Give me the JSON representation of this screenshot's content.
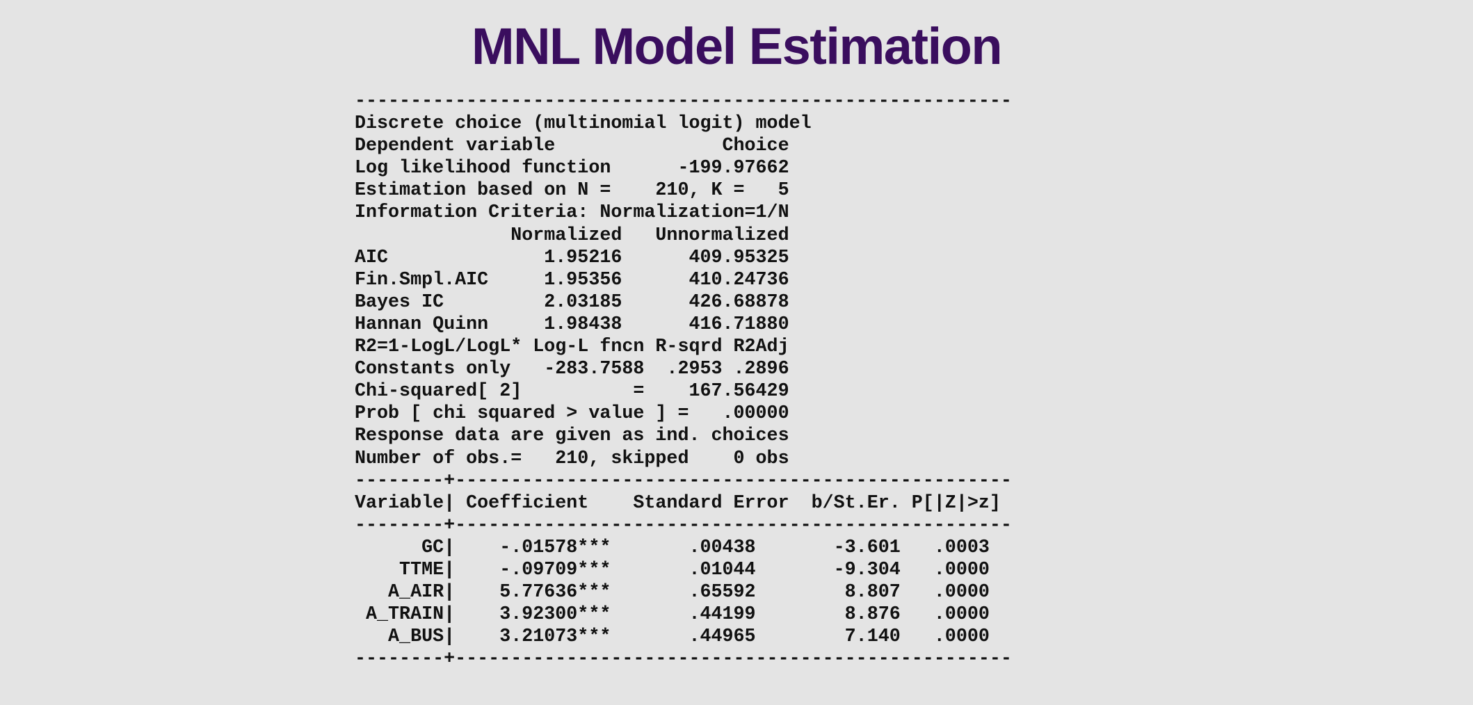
{
  "slide": {
    "title": "MNL Model Estimation",
    "title_color": "#3a0e5e",
    "background_color": "#e4e4e4"
  },
  "output": {
    "rule_top": "-----------------------------------------------------------",
    "header_lines": [
      "Discrete choice (multinomial logit) model",
      "Dependent variable               Choice",
      "Log likelihood function      -199.97662",
      "Estimation based on N =    210, K =   5",
      "Information Criteria: Normalization=1/N",
      "              Normalized   Unnormalized",
      "AIC              1.95216      409.95325",
      "Fin.Smpl.AIC     1.95356      410.24736",
      "Bayes IC         2.03185      426.68878",
      "Hannan Quinn     1.98438      416.71880",
      "R2=1-LogL/LogL* Log-L fncn R-sqrd R2Adj",
      "Constants only   -283.7588  .2953 .2896",
      "Chi-squared[ 2]          =    167.56429",
      "Prob [ chi squared > value ] =   .00000",
      "Response data are given as ind. choices",
      "Number of obs.=   210, skipped    0 obs"
    ],
    "summary": {
      "model": "Discrete choice (multinomial logit) model",
      "dependent_variable": "Choice",
      "log_likelihood": "-199.97662",
      "N": "210",
      "K": "5",
      "information_criteria": [
        {
          "name": "AIC",
          "normalized": "1.95216",
          "unnormalized": "409.95325"
        },
        {
          "name": "Fin.Smpl.AIC",
          "normalized": "1.95356",
          "unnormalized": "410.24736"
        },
        {
          "name": "Bayes IC",
          "normalized": "2.03185",
          "unnormalized": "426.68878"
        },
        {
          "name": "Hannan Quinn",
          "normalized": "1.98438",
          "unnormalized": "416.71880"
        }
      ],
      "constants_only": {
        "log_l": "-283.7588",
        "r_sqrd": ".2953",
        "r2adj": ".2896"
      },
      "chi_squared_df": "2",
      "chi_squared": "167.56429",
      "prob_chi_squared": ".00000",
      "number_of_obs": "210",
      "skipped": "0"
    },
    "rule_mid1": "--------+--------------------------------------------------",
    "table_header": "Variable| Coefficient    Standard Error  b/St.Er. P[|Z|>z]",
    "rule_mid2": "--------+--------------------------------------------------",
    "table_rows": [
      "      GC|    -.01578***       .00438       -3.601   .0003",
      "    TTME|    -.09709***       .01044       -9.304   .0000",
      "   A_AIR|    5.77636***       .65592        8.807   .0000",
      " A_TRAIN|    3.92300***       .44199        8.876   .0000",
      "   A_BUS|    3.21073***       .44965        7.140   .0000"
    ],
    "coefficients": [
      {
        "variable": "GC",
        "coefficient": "-.01578***",
        "std_error": ".00438",
        "b_st_er": "-3.601",
        "p_value": ".0003"
      },
      {
        "variable": "TTME",
        "coefficient": "-.09709***",
        "std_error": ".01044",
        "b_st_er": "-9.304",
        "p_value": ".0000"
      },
      {
        "variable": "A_AIR",
        "coefficient": "5.77636***",
        "std_error": ".65592",
        "b_st_er": "8.807",
        "p_value": ".0000"
      },
      {
        "variable": "A_TRAIN",
        "coefficient": "3.92300***",
        "std_error": ".44199",
        "b_st_er": "8.876",
        "p_value": ".0000"
      },
      {
        "variable": "A_BUS",
        "coefficient": "3.21073***",
        "std_error": ".44965",
        "b_st_er": "7.140",
        "p_value": ".0000"
      }
    ],
    "rule_bottom": "--------+--------------------------------------------------"
  }
}
